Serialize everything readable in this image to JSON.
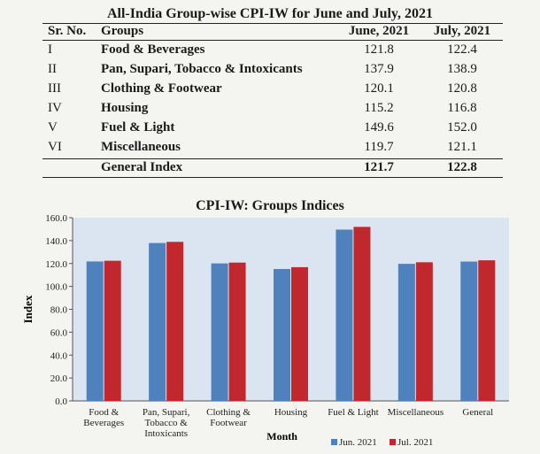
{
  "table": {
    "title": "All-India Group-wise CPI-IW for June and July, 2021",
    "headers": {
      "sr": "Sr. No.",
      "groups": "Groups",
      "june": "June, 2021",
      "july": "July, 2021"
    },
    "rows": [
      {
        "sr": "I",
        "group": "Food & Beverages",
        "june": "121.8",
        "july": "122.4"
      },
      {
        "sr": "II",
        "group": "Pan, Supari, Tobacco & Intoxicants",
        "june": "137.9",
        "july": "138.9"
      },
      {
        "sr": "III",
        "group": "Clothing & Footwear",
        "june": "120.1",
        "july": "120.8"
      },
      {
        "sr": "IV",
        "group": "Housing",
        "june": "115.2",
        "july": "116.8"
      },
      {
        "sr": "V",
        "group": "Fuel & Light",
        "june": "149.6",
        "july": "152.0"
      },
      {
        "sr": "VI",
        "group": "Miscellaneous",
        "june": "119.7",
        "july": "121.1"
      }
    ],
    "total": {
      "group": "General Index",
      "june": "121.7",
      "july": "122.8"
    }
  },
  "chart_data": {
    "type": "bar",
    "title": "CPI-IW: Groups Indices",
    "xlabel": "Month",
    "ylabel": "Index",
    "ylim": [
      0,
      160
    ],
    "yticks": [
      "0.0",
      "20.0",
      "40.0",
      "60.0",
      "80.0",
      "100.0",
      "120.0",
      "140.0",
      "160.0"
    ],
    "categories": [
      [
        "Food &",
        "Beverages"
      ],
      [
        "Pan, Supari,",
        "Tobacco &",
        "Intoxicants"
      ],
      [
        "Clothing &",
        "Footwear"
      ],
      [
        "Housing"
      ],
      [
        "Fuel & Light"
      ],
      [
        "Miscellaneous"
      ],
      [
        "General"
      ]
    ],
    "series": [
      {
        "name": "Jun. 2021",
        "values": [
          121.8,
          137.9,
          120.1,
          115.2,
          149.6,
          119.7,
          121.7
        ]
      },
      {
        "name": "Jul. 2021",
        "values": [
          122.4,
          138.9,
          120.8,
          116.8,
          152.0,
          121.1,
          122.8
        ]
      }
    ],
    "legend": "bottom-right",
    "grid": false,
    "colors": {
      "series": [
        "#4f81bd",
        "#c0282d"
      ],
      "plot_bg": "#dbe5f1"
    }
  }
}
